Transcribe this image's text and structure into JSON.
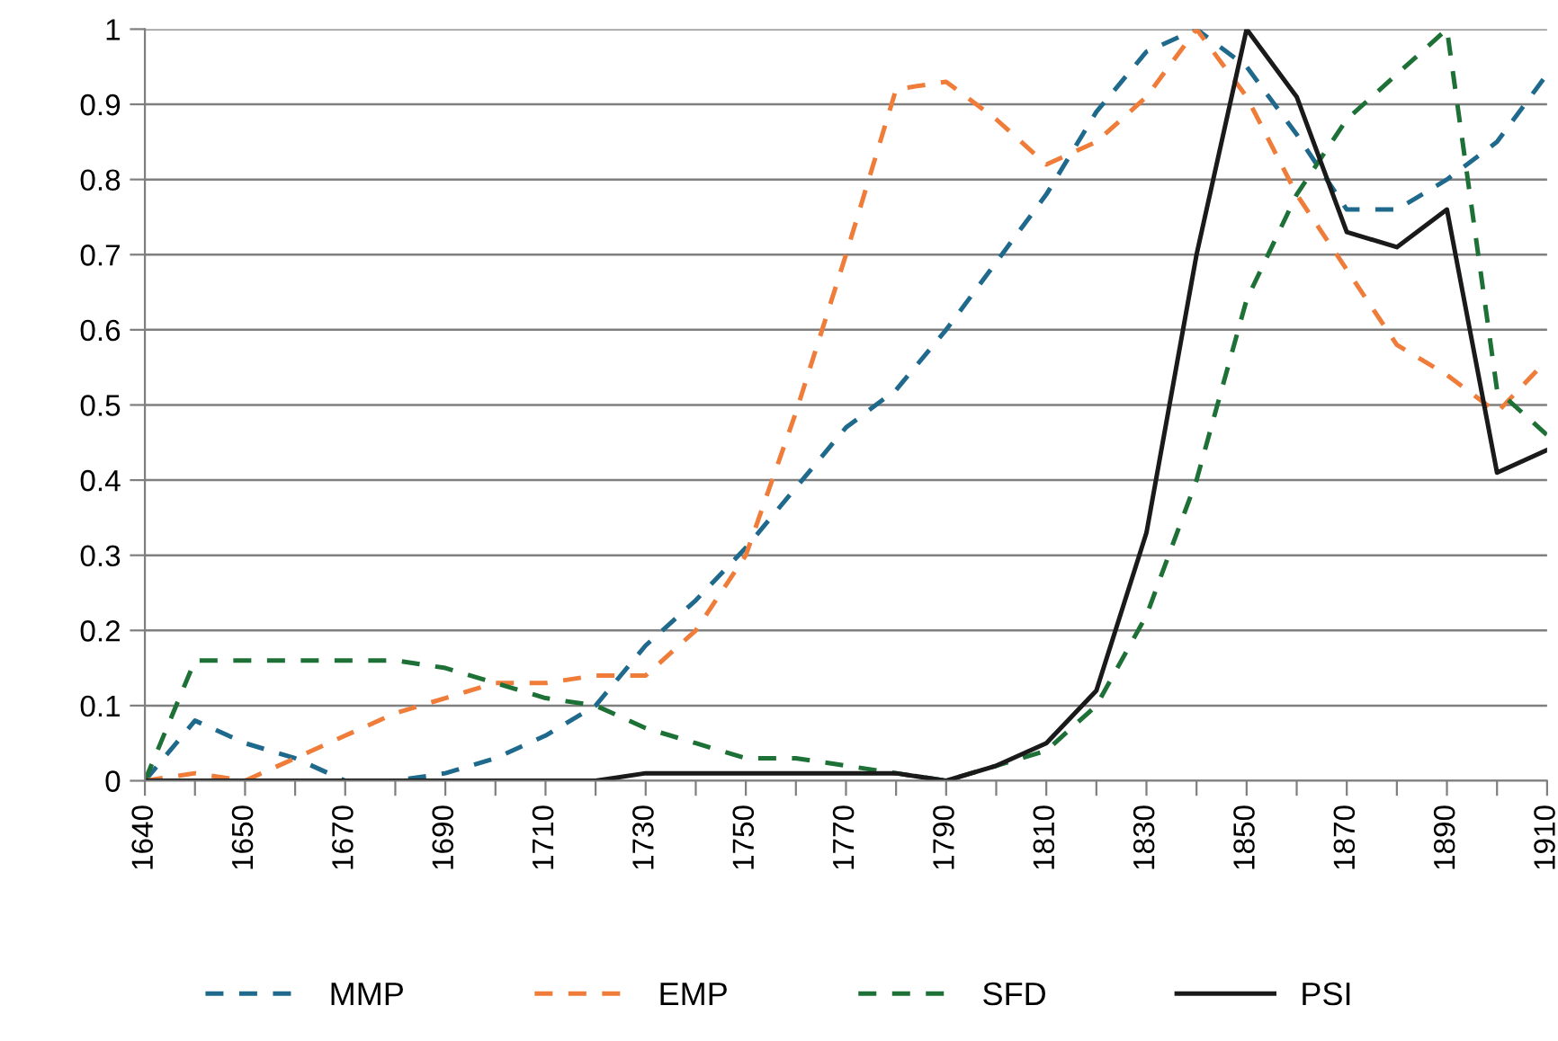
{
  "chart_data": {
    "type": "line",
    "categories": [
      "1640",
      null,
      "1650",
      null,
      "1670",
      null,
      "1690",
      null,
      "1710",
      null,
      "1730",
      null,
      "1750",
      null,
      "1770",
      null,
      "1790",
      null,
      "1810",
      null,
      "1830",
      null,
      "1850",
      null,
      "1870",
      null,
      "1890",
      null,
      "1910"
    ],
    "series": [
      {
        "name": "MMP",
        "color": "#1f6a8c",
        "line_style": "dashed",
        "values": [
          0,
          0.08,
          0.05,
          0.03,
          0.0,
          0.0,
          0.01,
          0.03,
          0.06,
          0.1,
          0.18,
          0.24,
          0.31,
          0.39,
          0.47,
          0.52,
          0.6,
          0.69,
          0.78,
          0.89,
          0.97,
          1.0,
          0.95,
          0.86,
          0.76,
          0.76,
          0.8,
          0.85,
          0.94
        ]
      },
      {
        "name": "EMP",
        "color": "#f07c3a",
        "line_style": "dashed",
        "values": [
          0,
          0.01,
          0.0,
          0.03,
          0.06,
          0.09,
          0.11,
          0.13,
          0.13,
          0.14,
          0.14,
          0.2,
          0.3,
          0.49,
          0.7,
          0.92,
          0.93,
          0.88,
          0.82,
          0.85,
          0.91,
          1.0,
          0.91,
          0.78,
          0.68,
          0.58,
          0.54,
          0.49,
          0.56
        ]
      },
      {
        "name": "SFD",
        "color": "#1e7136",
        "line_style": "dashed",
        "values": [
          0,
          0.16,
          0.16,
          0.16,
          0.16,
          0.16,
          0.15,
          0.13,
          0.11,
          0.1,
          0.07,
          0.05,
          0.03,
          0.03,
          0.02,
          0.01,
          0,
          0.02,
          0.04,
          0.1,
          0.22,
          0.4,
          0.64,
          0.78,
          0.88,
          0.94,
          1.0,
          0.52,
          0.46
        ]
      },
      {
        "name": "PSI",
        "color": "#1a1a1a",
        "line_style": "solid",
        "values": [
          0,
          0,
          0,
          0,
          0,
          0,
          0,
          0,
          0,
          0,
          0.01,
          0.01,
          0.01,
          0.01,
          0.01,
          0.01,
          0,
          0.02,
          0.05,
          0.12,
          0.33,
          0.7,
          1.0,
          0.91,
          0.73,
          0.71,
          0.76,
          0.41,
          0.44
        ]
      }
    ],
    "ylim": [
      0,
      1
    ],
    "yticks": [
      0,
      0.1,
      0.2,
      0.3,
      0.4,
      0.5,
      0.6,
      0.7,
      0.8,
      0.9,
      1
    ],
    "grid": "y",
    "legend": "bottom"
  }
}
